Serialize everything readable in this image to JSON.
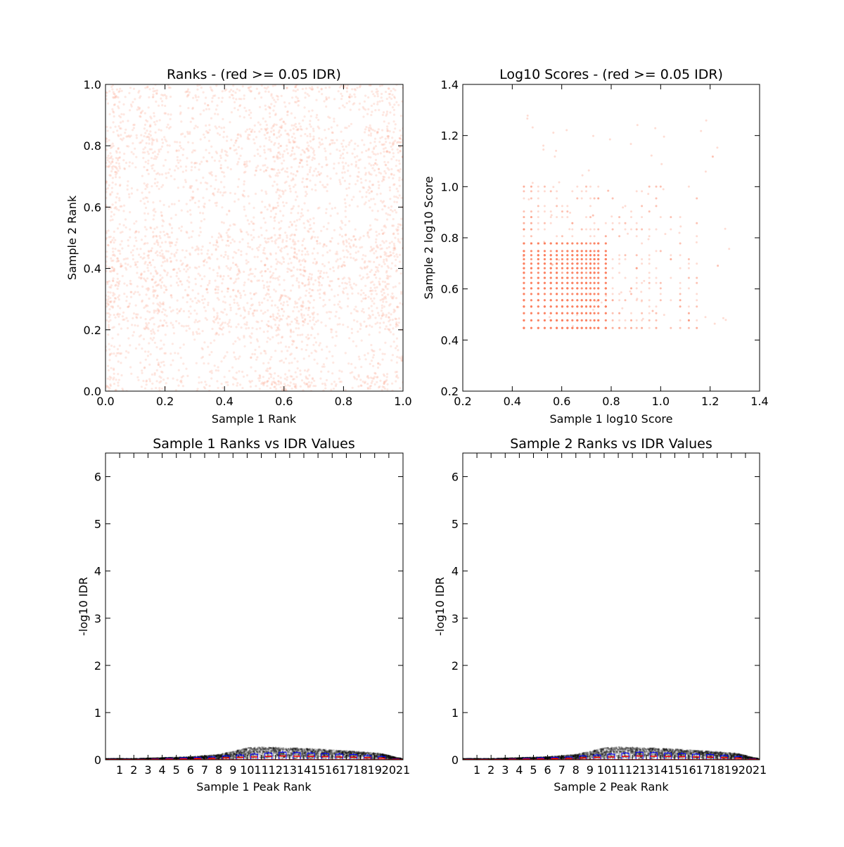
{
  "chart_data": [
    {
      "id": "ranks",
      "type": "scatter",
      "title": "Ranks - (red >= 0.05 IDR)",
      "xlabel": "Sample 1 Rank",
      "ylabel": "Sample 2 Rank",
      "xlim": [
        0.0,
        1.0
      ],
      "ylim": [
        0.0,
        1.0
      ],
      "xticks": [
        "0.0",
        "0.2",
        "0.4",
        "0.6",
        "0.8",
        "1.0"
      ],
      "yticks": [
        "0.0",
        "0.2",
        "0.4",
        "0.6",
        "0.8",
        "1.0"
      ],
      "point_color": "#fa8060",
      "point_alpha": 0.18,
      "description_of_density": {
        "x_blocks": [
          [
            0.0,
            0.05
          ],
          [
            0.05,
            0.13
          ],
          [
            0.13,
            0.2
          ],
          [
            0.2,
            0.53
          ],
          [
            0.53,
            0.7
          ],
          [
            0.7,
            0.88
          ],
          [
            0.88,
            1.0
          ]
        ],
        "y_blocks": [
          [
            0.0,
            0.05
          ],
          [
            0.05,
            0.2
          ],
          [
            0.2,
            0.52
          ],
          [
            0.52,
            0.7
          ],
          [
            0.7,
            0.87
          ],
          [
            0.87,
            0.95
          ],
          [
            0.95,
            1.0
          ]
        ]
      },
      "grid": false
    },
    {
      "id": "scores",
      "type": "scatter",
      "title": "Log10 Scores - (red >= 0.05 IDR)",
      "xlabel": "Sample 1 log10 Score",
      "ylabel": "Sample 2 log10 Score",
      "xlim": [
        0.2,
        1.4
      ],
      "ylim": [
        0.2,
        1.4
      ],
      "xticks": [
        "0.2",
        "0.4",
        "0.6",
        "0.8",
        "1.0",
        "1.2",
        "1.4"
      ],
      "yticks": [
        "0.2",
        "0.4",
        "0.6",
        "0.8",
        "1.0",
        "1.2",
        "1.4"
      ],
      "point_color": "#fa8060",
      "score_levels": [
        0.447,
        0.477,
        0.505,
        0.531,
        0.556,
        0.58,
        0.602,
        0.623,
        0.643,
        0.663,
        0.681,
        0.699,
        0.716,
        0.732,
        0.748,
        0.778,
        0.806,
        0.833,
        0.857,
        0.881,
        0.903,
        0.924,
        0.954,
        0.982,
        1.0,
        1.041,
        1.079,
        1.114,
        1.146
      ],
      "dense_levels_x": [
        0.447,
        0.477,
        0.505,
        0.531,
        0.556,
        0.58,
        0.602,
        0.623,
        0.643,
        0.663,
        0.681,
        0.699,
        0.716,
        0.732,
        0.748,
        0.778
      ],
      "dense_levels_y": [
        0.447,
        0.477,
        0.505,
        0.531,
        0.556,
        0.58,
        0.602,
        0.623,
        0.643,
        0.663,
        0.681,
        0.699,
        0.716,
        0.732,
        0.748,
        0.778
      ],
      "grid": false
    },
    {
      "id": "idr1",
      "type": "scatter",
      "title": "Sample 1 Ranks vs IDR Values",
      "xlabel": "Sample 1 Peak Rank",
      "ylabel": "-log10 IDR",
      "xlim": [
        0,
        21
      ],
      "ylim": [
        0,
        6.5
      ],
      "xticks": [
        "1",
        "2",
        "3",
        "4",
        "5",
        "6",
        "7",
        "8",
        "9",
        "10",
        "11",
        "12",
        "13",
        "14",
        "15",
        "16",
        "17",
        "18",
        "19",
        "20",
        "21"
      ],
      "yticks": [
        "0",
        "1",
        "2",
        "3",
        "4",
        "5",
        "6"
      ],
      "point_color": "#000000",
      "box_color": "#0000ff",
      "median_color": "#ff0000",
      "curve": {
        "x": [
          0,
          2,
          4,
          6,
          8,
          9,
          10,
          11,
          12,
          14,
          16,
          18,
          19.5,
          20.5,
          21
        ],
        "upper": [
          0.02,
          0.02,
          0.04,
          0.06,
          0.11,
          0.18,
          0.25,
          0.27,
          0.26,
          0.24,
          0.21,
          0.17,
          0.13,
          0.05,
          0.02
        ],
        "lower": [
          0.0,
          0.0,
          0.0,
          0.0,
          0.0,
          0.0,
          0.01,
          0.02,
          0.02,
          0.02,
          0.02,
          0.01,
          0.01,
          0.0,
          0.0
        ]
      },
      "box_heights": [
        0.01,
        0.01,
        0.01,
        0.02,
        0.03,
        0.04,
        0.05,
        0.06,
        0.08,
        0.1,
        0.12,
        0.14,
        0.16,
        0.15,
        0.14,
        0.13,
        0.12,
        0.11,
        0.09,
        0.07,
        0.02
      ]
    },
    {
      "id": "idr2",
      "type": "scatter",
      "title": "Sample 2 Ranks vs IDR Values",
      "xlabel": "Sample 2 Peak Rank",
      "ylabel": "-log10 IDR",
      "xlim": [
        0,
        21
      ],
      "ylim": [
        0,
        6.5
      ],
      "xticks": [
        "1",
        "2",
        "3",
        "4",
        "5",
        "6",
        "7",
        "8",
        "9",
        "10",
        "11",
        "12",
        "13",
        "14",
        "15",
        "16",
        "17",
        "18",
        "19",
        "20",
        "21"
      ],
      "yticks": [
        "0",
        "1",
        "2",
        "3",
        "4",
        "5",
        "6"
      ],
      "point_color": "#000000",
      "box_color": "#0000ff",
      "median_color": "#ff0000",
      "curve": {
        "x": [
          0,
          2,
          4,
          6,
          8,
          9,
          10,
          11,
          12,
          14,
          16,
          18,
          19.5,
          20.5,
          21
        ],
        "upper": [
          0.02,
          0.02,
          0.04,
          0.06,
          0.11,
          0.18,
          0.25,
          0.27,
          0.26,
          0.24,
          0.21,
          0.17,
          0.13,
          0.05,
          0.02
        ],
        "lower": [
          0.0,
          0.0,
          0.0,
          0.0,
          0.0,
          0.0,
          0.01,
          0.02,
          0.02,
          0.02,
          0.02,
          0.01,
          0.01,
          0.0,
          0.0
        ]
      },
      "box_heights": [
        0.01,
        0.01,
        0.01,
        0.02,
        0.03,
        0.04,
        0.05,
        0.06,
        0.08,
        0.1,
        0.12,
        0.14,
        0.16,
        0.15,
        0.14,
        0.13,
        0.12,
        0.11,
        0.09,
        0.07,
        0.02
      ]
    }
  ]
}
